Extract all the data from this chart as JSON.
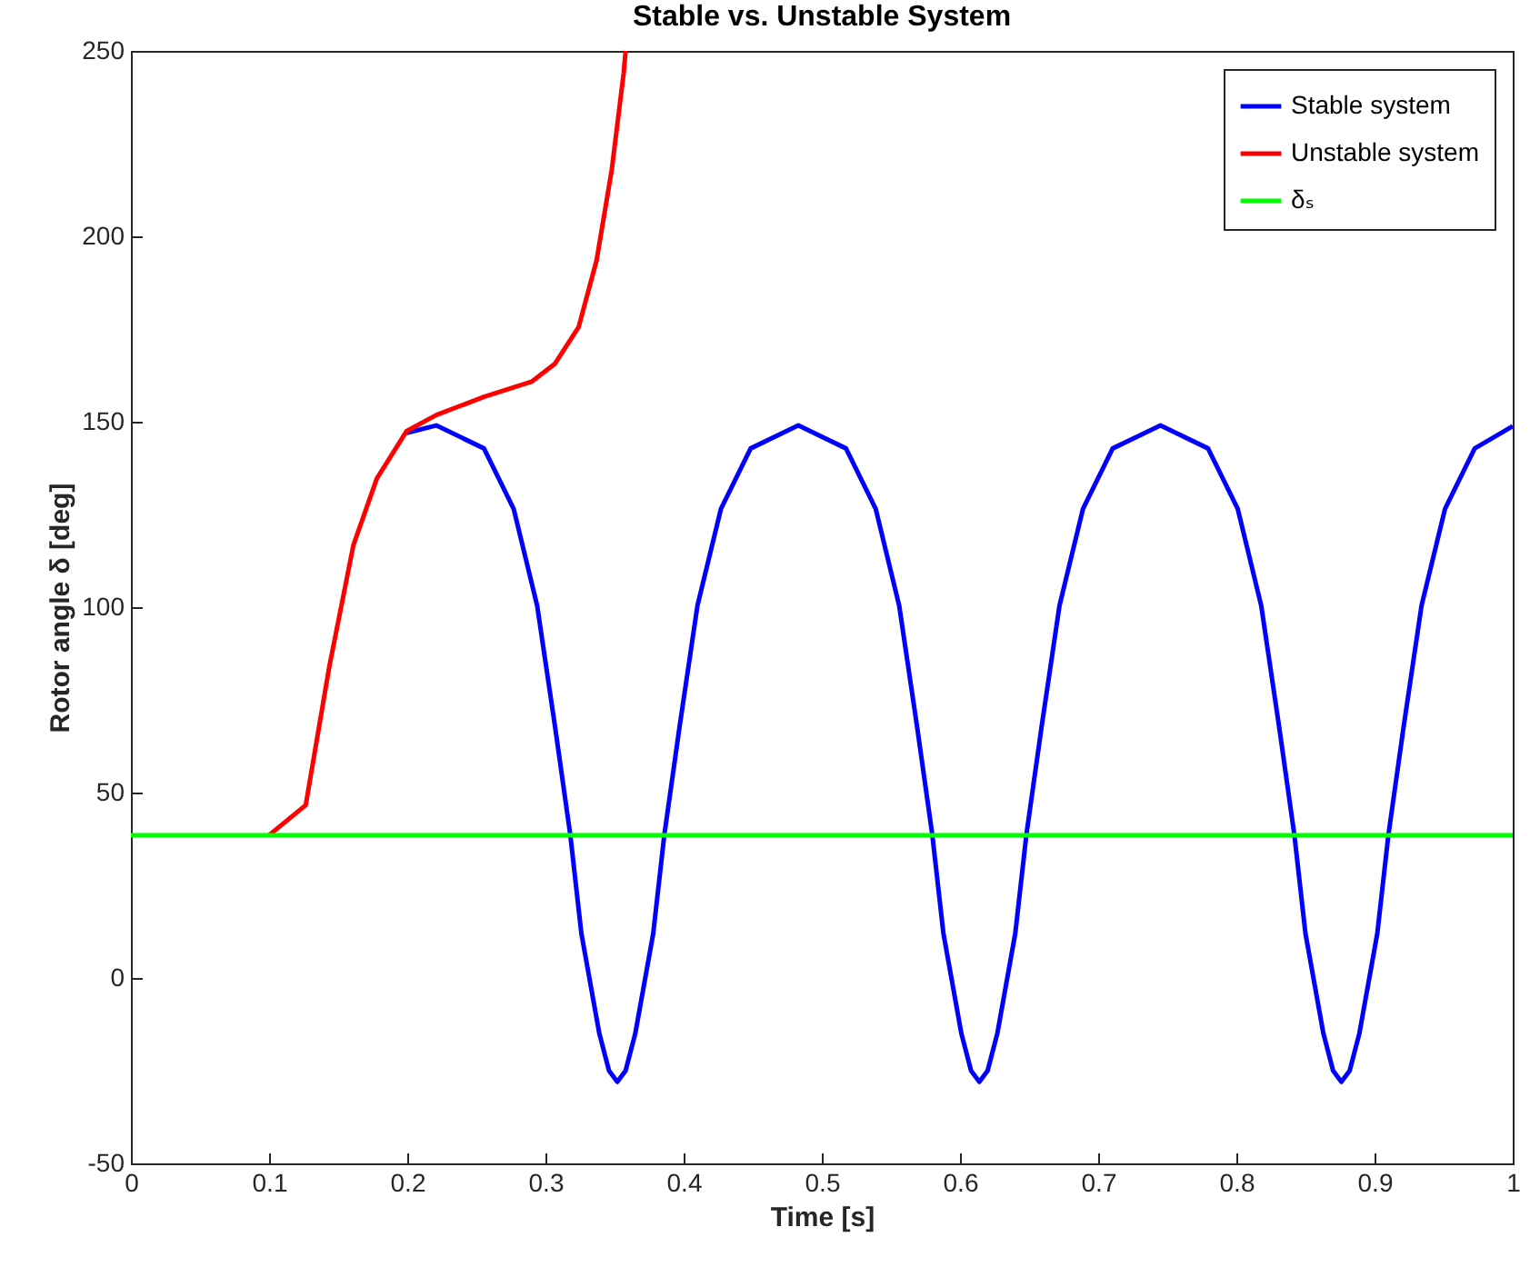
{
  "chart_data": {
    "type": "line",
    "title": "Stable vs. Unstable System",
    "xlabel": "Time [s]",
    "ylabel": "Rotor angle δ [deg]",
    "xlim": [
      0,
      1
    ],
    "xticks": [
      0,
      0.1,
      0.2,
      0.3,
      0.4,
      0.5,
      0.6,
      0.7,
      0.8,
      0.9,
      1
    ],
    "ylim": [
      -50,
      250
    ],
    "yticks": [
      -50,
      0,
      50,
      100,
      150,
      200,
      250
    ],
    "grid": false,
    "legend": "top right",
    "line_style": "solid",
    "series": [
      {
        "name": "Stable system",
        "color": "#0000ff",
        "x": [
          0.1996,
          0.221,
          0.2555,
          0.277,
          0.294,
          0.307,
          0.318,
          0.326,
          0.339,
          0.346,
          0.352,
          0.358,
          0.365,
          0.378,
          0.386,
          0.397,
          0.41,
          0.427,
          0.4485,
          0.483,
          0.5175,
          0.539,
          0.556,
          0.569,
          0.58,
          0.588,
          0.601,
          0.608,
          0.614,
          0.62,
          0.627,
          0.64,
          0.648,
          0.659,
          0.672,
          0.689,
          0.7105,
          0.745,
          0.7795,
          0.801,
          0.818,
          0.831,
          0.842,
          0.85,
          0.863,
          0.87,
          0.876,
          0.882,
          0.889,
          0.902,
          0.91,
          0.921,
          0.934,
          0.951,
          0.9725,
          1.0
        ],
        "values": [
          147,
          149,
          142.8,
          126.5,
          100.4,
          67.6,
          38.5,
          12,
          -15,
          -25,
          -28,
          -25,
          -15,
          12,
          38.5,
          67.6,
          100.4,
          126.5,
          142.8,
          149,
          142.8,
          126.5,
          100.4,
          67.6,
          38.5,
          12,
          -15,
          -25,
          -28,
          -25,
          -15,
          12,
          38.5,
          67.6,
          100.4,
          126.5,
          142.8,
          149,
          142.8,
          126.5,
          100.4,
          67.6,
          38.5,
          12,
          -15,
          -25,
          -28,
          -25,
          -15,
          12,
          38.5,
          67.6,
          100.4,
          126.5,
          142.8,
          148.8
        ]
      },
      {
        "name": "Unstable system",
        "color": "#ff0000",
        "x": [
          0.1,
          0.1265,
          0.1436,
          0.161,
          0.178,
          0.1996,
          0.221,
          0.2555,
          0.29,
          0.307,
          0.324,
          0.337,
          0.348,
          0.3566,
          0.358
        ],
        "values": [
          38.5,
          46.6,
          84,
          116.7,
          134.7,
          147.5,
          151.8,
          156.7,
          160.8,
          165.7,
          175.5,
          193.5,
          218,
          244,
          250
        ]
      },
      {
        "name": "δₛ",
        "color": "#00ff00",
        "x": [
          0,
          1
        ],
        "values": [
          38.5,
          38.5
        ]
      }
    ]
  }
}
